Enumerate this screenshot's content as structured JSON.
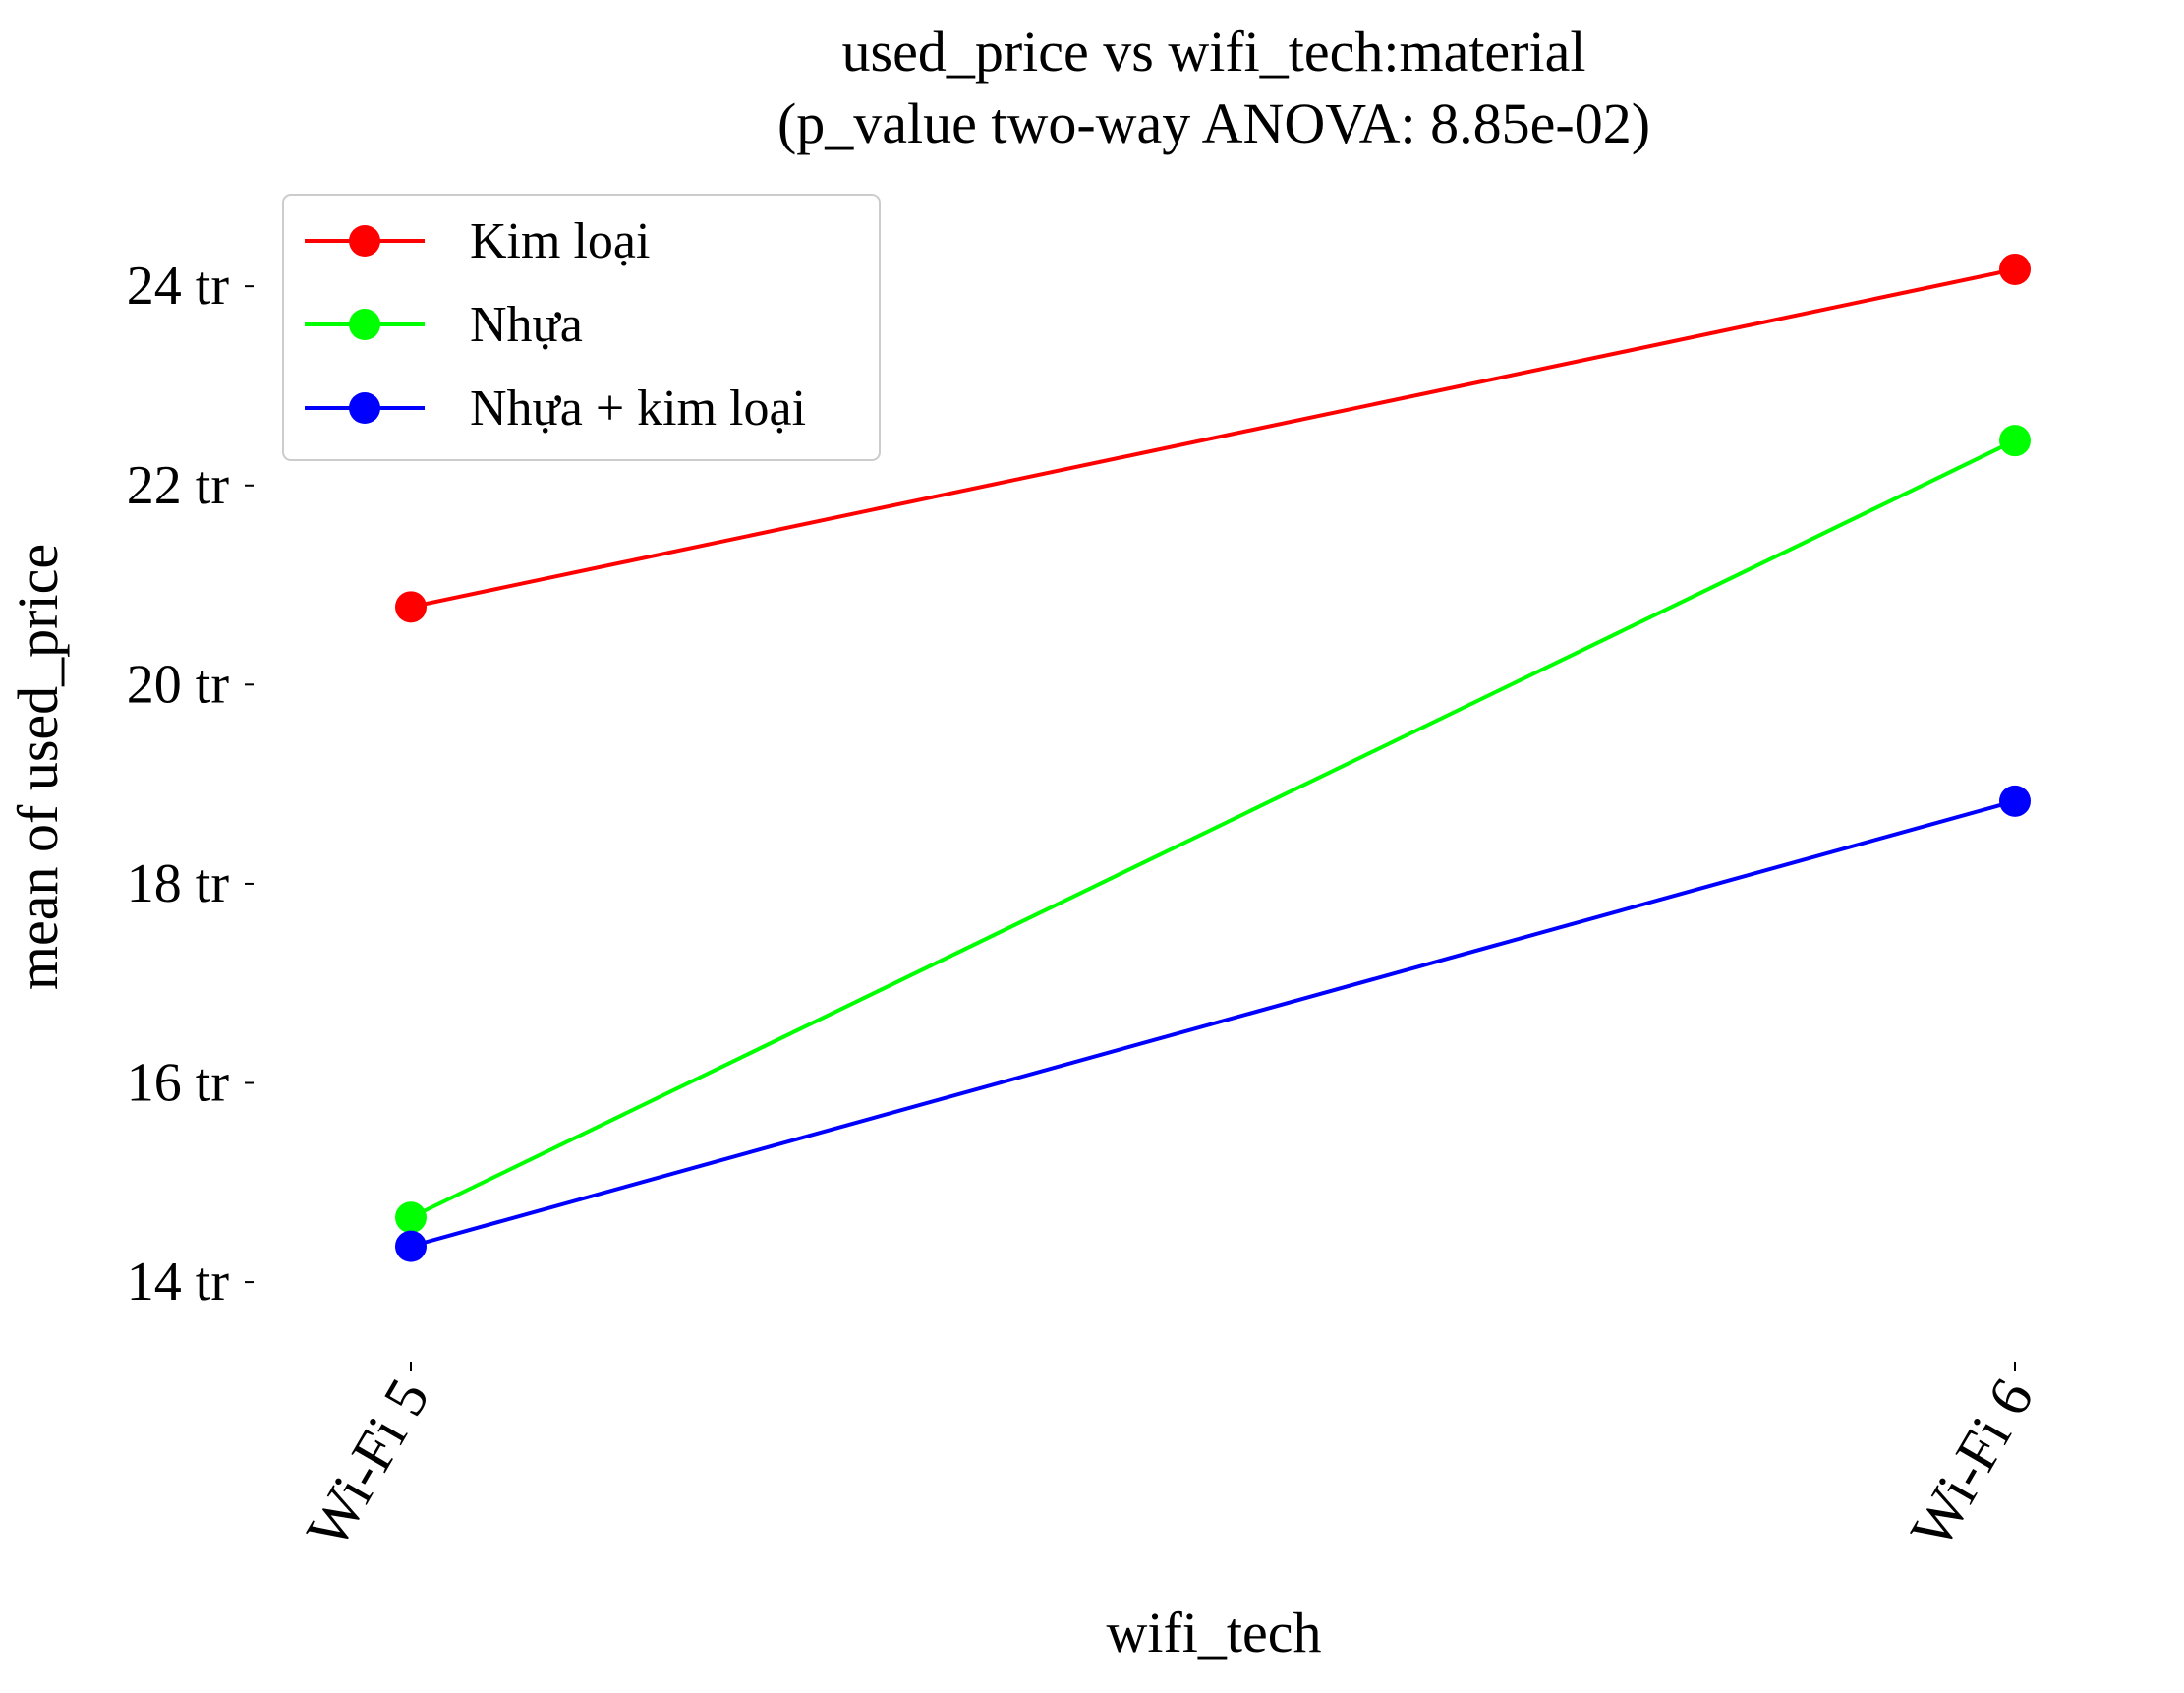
{
  "chart_data": {
    "type": "line",
    "title": "used_price vs wifi_tech:material",
    "subtitle": "(p_value two-way ANOVA: 8.85e-02)",
    "xlabel": "wifi_tech",
    "ylabel": "mean of used_price",
    "categories": [
      "Wi-Fi 5",
      "Wi-Fi 6"
    ],
    "y_ticks": [
      {
        "value": 14,
        "label": "14 tr"
      },
      {
        "value": 16,
        "label": "16 tr"
      },
      {
        "value": 18,
        "label": "18 tr"
      },
      {
        "value": 20,
        "label": "20 tr"
      },
      {
        "value": 22,
        "label": "22 tr"
      },
      {
        "value": 24,
        "label": "24 tr"
      }
    ],
    "ylim": [
      13.3,
      24.9
    ],
    "grid": false,
    "legend_position": "top-left",
    "series": [
      {
        "name": "Kim loại",
        "color": "#ff0000",
        "values": [
          20.78,
          24.17
        ]
      },
      {
        "name": "Nhựa",
        "color": "#00ff00",
        "values": [
          14.65,
          22.45
        ]
      },
      {
        "name": "Nhựa + kim loại",
        "color": "#0000ff",
        "values": [
          14.36,
          18.83
        ]
      }
    ]
  }
}
